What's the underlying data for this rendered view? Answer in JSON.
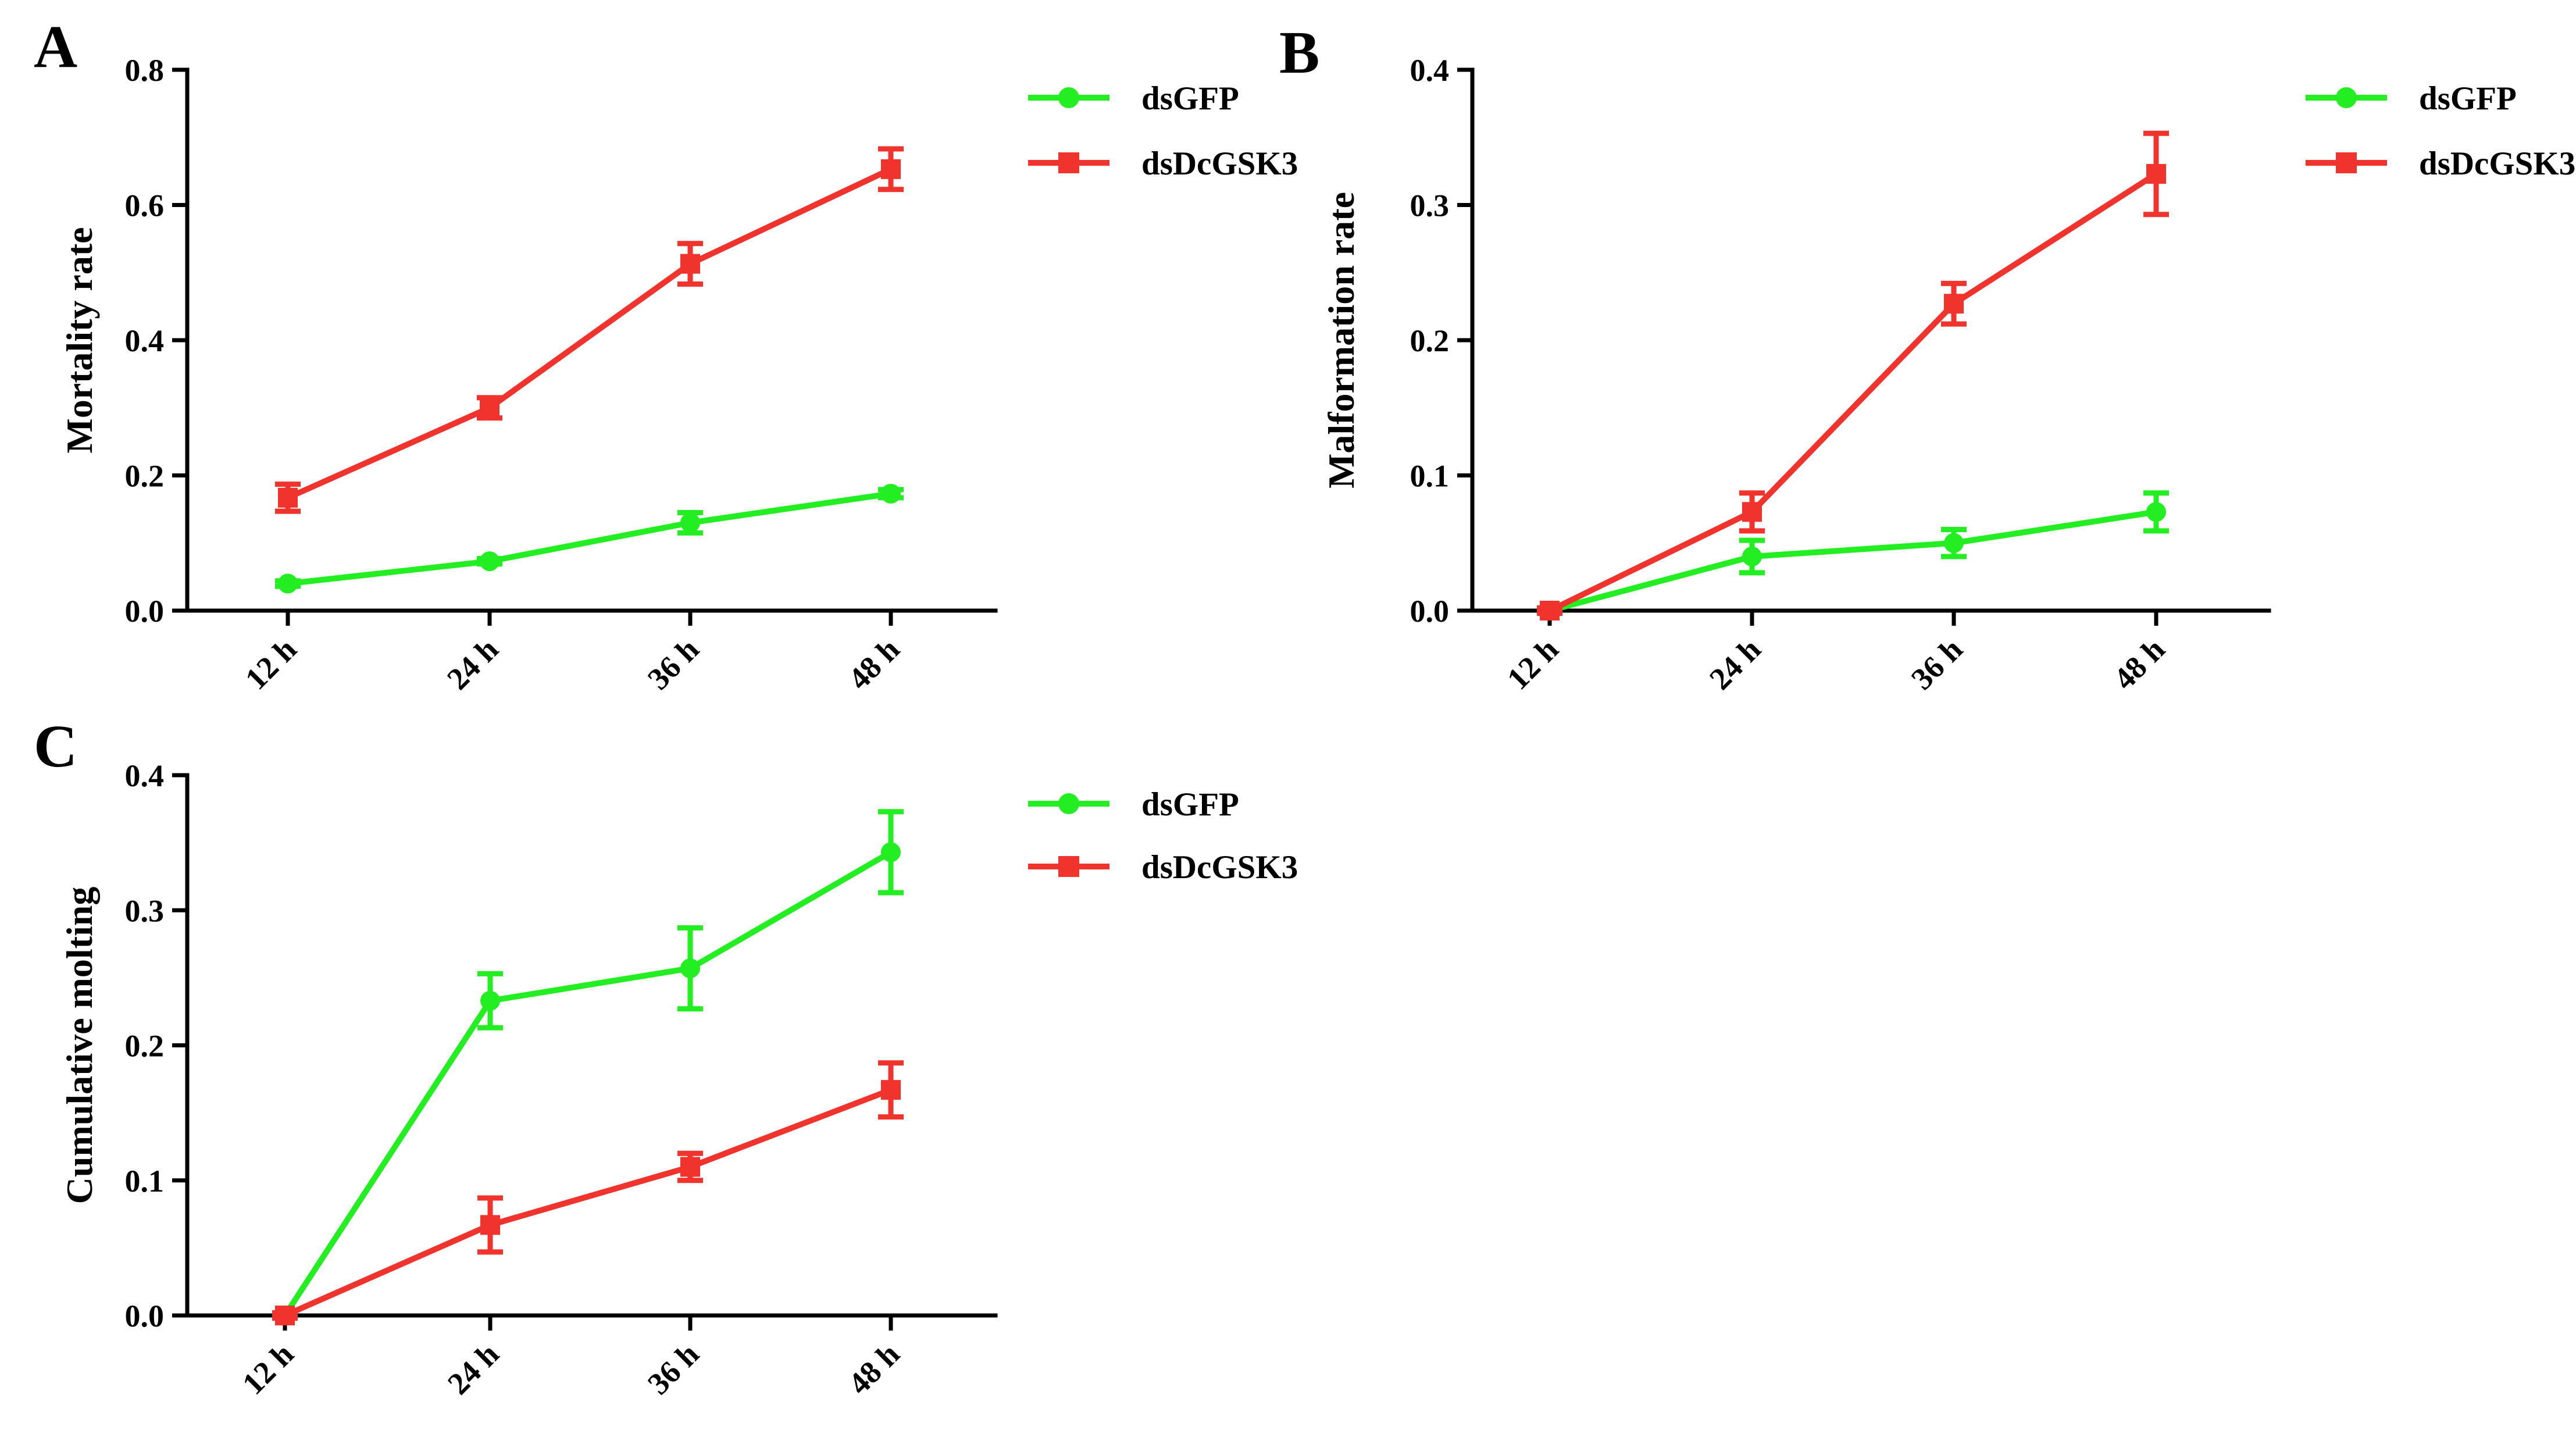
{
  "colors": {
    "dsGFP": "#22ee22",
    "dsDcGSK3": "#f0332c",
    "axis": "#000000"
  },
  "chart_data": [
    {
      "panel": "A",
      "type": "line",
      "title": "",
      "xlabel": "",
      "ylabel": "Mortality rate",
      "categories": [
        "12 h",
        "24 h",
        "36 h",
        "48 h"
      ],
      "ylim": [
        0,
        0.8
      ],
      "yticks": [
        0,
        0.2,
        0.4,
        0.6,
        0.8
      ],
      "ytick_labels": [
        "0.0",
        "0.2",
        "0.4",
        "0.6",
        "0.8"
      ],
      "legend_position": "top-right",
      "series": [
        {
          "name": "dsGFP",
          "marker": "circle",
          "color": "#22ee22",
          "values": [
            0.04,
            0.073,
            0.13,
            0.173
          ],
          "errors": [
            0.004,
            0.004,
            0.015,
            0.006
          ]
        },
        {
          "name": "dsDcGSK3",
          "marker": "square",
          "color": "#f0332c",
          "values": [
            0.167,
            0.3,
            0.513,
            0.653
          ],
          "errors": [
            0.02,
            0.015,
            0.03,
            0.03
          ]
        }
      ]
    },
    {
      "panel": "B",
      "type": "line",
      "title": "",
      "xlabel": "",
      "ylabel": "Malformation rate",
      "categories": [
        "12 h",
        "24 h",
        "36 h",
        "48 h"
      ],
      "ylim": [
        0,
        0.4
      ],
      "yticks": [
        0,
        0.1,
        0.2,
        0.3,
        0.4
      ],
      "ytick_labels": [
        "0.0",
        "0.1",
        "0.2",
        "0.3",
        "0.4"
      ],
      "legend_position": "top-right",
      "series": [
        {
          "name": "dsGFP",
          "marker": "circle",
          "color": "#22ee22",
          "values": [
            0.0,
            0.04,
            0.05,
            0.073
          ],
          "errors": [
            0.002,
            0.012,
            0.01,
            0.014
          ]
        },
        {
          "name": "dsDcGSK3",
          "marker": "square",
          "color": "#f0332c",
          "values": [
            0.0,
            0.073,
            0.227,
            0.323
          ],
          "errors": [
            0.002,
            0.014,
            0.015,
            0.03
          ]
        }
      ]
    },
    {
      "panel": "C",
      "type": "line",
      "title": "",
      "xlabel": "",
      "ylabel": "Cumulative molting",
      "categories": [
        "12 h",
        "24 h",
        "36 h",
        "48 h"
      ],
      "ylim": [
        0,
        0.4
      ],
      "yticks": [
        0,
        0.1,
        0.2,
        0.3,
        0.4
      ],
      "ytick_labels": [
        "0.0",
        "0.1",
        "0.2",
        "0.3",
        "0.4"
      ],
      "legend_position": "top-right",
      "series": [
        {
          "name": "dsGFP",
          "marker": "circle",
          "color": "#22ee22",
          "values": [
            0.0,
            0.233,
            0.257,
            0.343
          ],
          "errors": [
            0.002,
            0.02,
            0.03,
            0.03
          ]
        },
        {
          "name": "dsDcGSK3",
          "marker": "square",
          "color": "#f0332c",
          "values": [
            0.0,
            0.067,
            0.11,
            0.167
          ],
          "errors": [
            0.002,
            0.02,
            0.01,
            0.02
          ]
        }
      ]
    }
  ]
}
